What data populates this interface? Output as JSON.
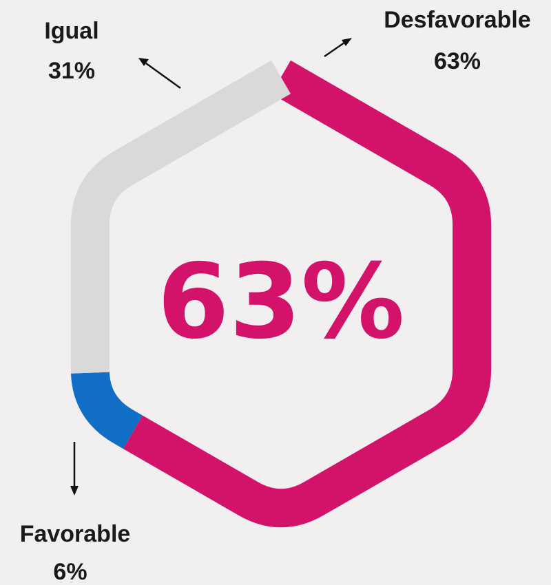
{
  "chart_data": {
    "type": "pie",
    "categories": [
      "Desfavorable",
      "Favorable",
      "Igual"
    ],
    "values": [
      63,
      6,
      31
    ],
    "value_labels": [
      "63%",
      "6%",
      "31%"
    ],
    "colors": [
      "#d3136a",
      "#106ec4",
      "#d9d9d9"
    ],
    "center_label": "63%",
    "center_color": "#d3136a",
    "legend": "none",
    "grid": false
  }
}
